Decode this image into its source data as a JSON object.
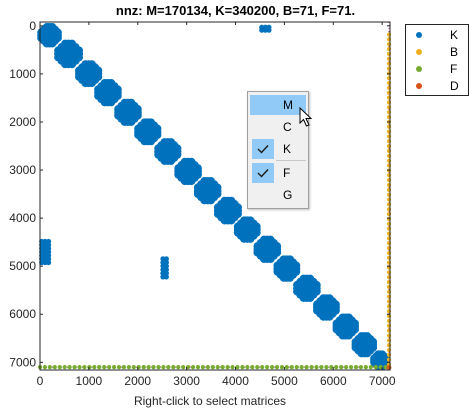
{
  "title": "nnz: M=170134, K=340200, B=71, F=71.",
  "xlabel": "Right-click to select matrices",
  "colors": {
    "K": "#0072bd",
    "B": "#edb120",
    "F": "#77ac30",
    "D": "#d95319",
    "axis": "#262626"
  },
  "legend": [
    {
      "label": "K",
      "color": "#0072bd"
    },
    {
      "label": "B",
      "color": "#edb120"
    },
    {
      "label": "F",
      "color": "#77ac30"
    },
    {
      "label": "D",
      "color": "#d95319"
    }
  ],
  "context_menu": {
    "items": [
      {
        "label": "M",
        "checked": false,
        "hovered": true
      },
      {
        "label": "C",
        "checked": false,
        "hovered": false
      },
      {
        "label": "K",
        "checked": true,
        "hovered": false
      },
      {
        "label": "F",
        "checked": true,
        "hovered": false
      },
      {
        "label": "G",
        "checked": false,
        "hovered": false
      }
    ]
  },
  "chart_data": {
    "type": "scatter",
    "title": "nnz: M=170134, K=340200, B=71, F=71.",
    "xlabel": "Right-click to select matrices",
    "ylabel": "",
    "xlim": [
      0,
      7160
    ],
    "ylim": [
      7160,
      -80
    ],
    "xticks": [
      0,
      1000,
      2000,
      3000,
      4000,
      5000,
      6000,
      7000
    ],
    "yticks": [
      0,
      1000,
      2000,
      3000,
      4000,
      5000,
      6000,
      7000
    ],
    "legend_position": "outside-top-right",
    "series": [
      {
        "name": "K",
        "color": "#0072bd",
        "diagonal_blocks": [
          {
            "start": 0,
            "end": 390
          },
          {
            "start": 340,
            "end": 830
          },
          {
            "start": 770,
            "end": 1220
          },
          {
            "start": 1160,
            "end": 1620
          },
          {
            "start": 1570,
            "end": 2030
          },
          {
            "start": 1980,
            "end": 2430
          },
          {
            "start": 2390,
            "end": 2840
          },
          {
            "start": 2800,
            "end": 3260
          },
          {
            "start": 3200,
            "end": 3660
          },
          {
            "start": 3610,
            "end": 4080
          },
          {
            "start": 4020,
            "end": 4460
          },
          {
            "start": 4420,
            "end": 4880
          },
          {
            "start": 4830,
            "end": 5270
          },
          {
            "start": 5230,
            "end": 5690
          },
          {
            "start": 5640,
            "end": 6080
          },
          {
            "start": 6040,
            "end": 6470
          },
          {
            "start": 6430,
            "end": 6840
          },
          {
            "start": 6820,
            "end": 7100
          }
        ],
        "offdiagonal_blocks": [
          {
            "x": [
              4500,
              4720
            ],
            "y": [
              0,
              120
            ]
          },
          {
            "x": [
              0,
              210
            ],
            "y": [
              4450,
              4960
            ]
          },
          {
            "x": [
              2480,
              2620
            ],
            "y": [
              4810,
              5260
            ]
          }
        ]
      },
      {
        "name": "B",
        "color": "#edb120",
        "x": 7140,
        "y_range": [
          180,
          7130
        ]
      },
      {
        "name": "F",
        "color": "#77ac30",
        "y": 7100,
        "x_range": [
          0,
          7130
        ]
      },
      {
        "name": "D",
        "color": "#d95319",
        "x": 7140,
        "y": 7110
      }
    ]
  }
}
